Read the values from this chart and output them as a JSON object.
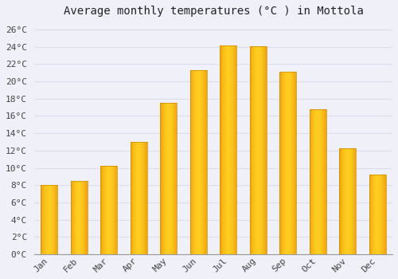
{
  "title": "Average monthly temperatures (°C ) in Mottola",
  "months": [
    "Jan",
    "Feb",
    "Mar",
    "Apr",
    "May",
    "Jun",
    "Jul",
    "Aug",
    "Sep",
    "Oct",
    "Nov",
    "Dec"
  ],
  "values": [
    8.0,
    8.5,
    10.2,
    13.0,
    17.5,
    21.3,
    24.2,
    24.1,
    21.1,
    16.8,
    12.3,
    9.2
  ],
  "bar_color_center": "#FFB800",
  "bar_color_edge": "#E08000",
  "background_color": "#F0F0F8",
  "plot_bg_color": "#F0F0F8",
  "grid_color": "#DDDDEE",
  "ylim": [
    0,
    27
  ],
  "yticks": [
    0,
    2,
    4,
    6,
    8,
    10,
    12,
    14,
    16,
    18,
    20,
    22,
    24,
    26
  ],
  "title_fontsize": 10,
  "tick_fontsize": 8,
  "font_family": "monospace",
  "bar_width": 0.55
}
